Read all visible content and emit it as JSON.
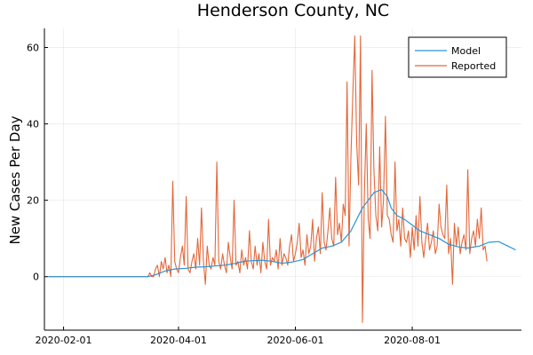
{
  "chart_data": {
    "type": "line",
    "title": "Henderson County, NC",
    "xlabel": "",
    "ylabel": "New Cases Per Day",
    "x_ticks": [
      "2020-02-01",
      "2020-04-01",
      "2020-06-01",
      "2020-08-01"
    ],
    "y_ticks": [
      0,
      20,
      40,
      60
    ],
    "xlim": [
      "2020-01-22",
      "2020-09-27"
    ],
    "ylim": [
      -14,
      65
    ],
    "grid": true,
    "legend": "top-right",
    "colors": {
      "Model": "#2b93d6",
      "Reported": "#e3673a"
    },
    "series": [
      {
        "name": "Model",
        "points": [
          [
            "2020-01-24",
            0
          ],
          [
            "2020-03-16",
            0
          ],
          [
            "2020-03-20",
            0.5
          ],
          [
            "2020-03-25",
            1.5
          ],
          [
            "2020-03-30",
            2.0
          ],
          [
            "2020-04-05",
            2.2
          ],
          [
            "2020-04-10",
            2.5
          ],
          [
            "2020-04-15",
            2.6
          ],
          [
            "2020-04-20",
            2.8
          ],
          [
            "2020-04-25",
            3.0
          ],
          [
            "2020-05-01",
            3.5
          ],
          [
            "2020-05-05",
            4.0
          ],
          [
            "2020-05-10",
            4.2
          ],
          [
            "2020-05-15",
            4.3
          ],
          [
            "2020-05-20",
            4.0
          ],
          [
            "2020-05-25",
            3.5
          ],
          [
            "2020-05-30",
            3.8
          ],
          [
            "2020-06-05",
            4.5
          ],
          [
            "2020-06-10",
            6.0
          ],
          [
            "2020-06-15",
            7.5
          ],
          [
            "2020-06-20",
            8.0
          ],
          [
            "2020-06-25",
            9.0
          ],
          [
            "2020-06-30",
            12.0
          ],
          [
            "2020-07-03",
            15.0
          ],
          [
            "2020-07-06",
            18.0
          ],
          [
            "2020-07-09",
            20.0
          ],
          [
            "2020-07-12",
            22.0
          ],
          [
            "2020-07-16",
            22.8
          ],
          [
            "2020-07-19",
            21.0
          ],
          [
            "2020-07-21",
            18.0
          ],
          [
            "2020-07-24",
            16.0
          ],
          [
            "2020-07-28",
            15.0
          ],
          [
            "2020-08-01",
            13.5
          ],
          [
            "2020-08-05",
            12.0
          ],
          [
            "2020-08-10",
            11.0
          ],
          [
            "2020-08-15",
            10.0
          ],
          [
            "2020-08-20",
            8.5
          ],
          [
            "2020-08-25",
            7.8
          ],
          [
            "2020-08-30",
            7.5
          ],
          [
            "2020-09-05",
            8.0
          ],
          [
            "2020-09-10",
            9.0
          ],
          [
            "2020-09-15",
            9.2
          ],
          [
            "2020-09-20",
            8.0
          ],
          [
            "2020-09-24",
            7.0
          ]
        ]
      },
      {
        "name": "Reported",
        "start": "2020-03-16",
        "values": [
          0,
          1,
          0,
          0,
          2,
          3,
          0,
          4,
          2,
          5,
          1,
          3,
          0,
          25,
          4,
          2,
          1,
          5,
          8,
          3,
          21,
          2,
          1,
          4,
          6,
          2,
          10,
          3,
          18,
          4,
          -2,
          8,
          3,
          2,
          5,
          3,
          30,
          4,
          2,
          6,
          3,
          1,
          9,
          5,
          2,
          20,
          3,
          4,
          1,
          7,
          3,
          5,
          2,
          12,
          4,
          2,
          8,
          3,
          6,
          1,
          9,
          4,
          2,
          15,
          3,
          5,
          4,
          7,
          2,
          10,
          3,
          6,
          5,
          3,
          8,
          11,
          4,
          6,
          9,
          14,
          5,
          7,
          3,
          11,
          6,
          8,
          15,
          4,
          10,
          13,
          6,
          22,
          9,
          7,
          12,
          18,
          10,
          8,
          26,
          11,
          14,
          9,
          19,
          16,
          51,
          8,
          32,
          48,
          63,
          35,
          24,
          63,
          -12,
          22,
          40,
          15,
          10,
          54,
          28,
          16,
          12,
          34,
          13,
          20,
          42,
          16,
          15,
          11,
          9,
          30,
          12,
          15,
          8,
          18,
          10,
          9,
          12,
          5,
          13,
          7,
          16,
          8,
          21,
          9,
          5,
          10,
          14,
          7,
          9,
          12,
          6,
          8,
          19,
          13,
          11,
          10,
          24,
          6,
          10,
          -2,
          14,
          8,
          13,
          6,
          9,
          11,
          7,
          28,
          6,
          10,
          12,
          8,
          15,
          10,
          18,
          7,
          8,
          4
        ]
      }
    ]
  }
}
